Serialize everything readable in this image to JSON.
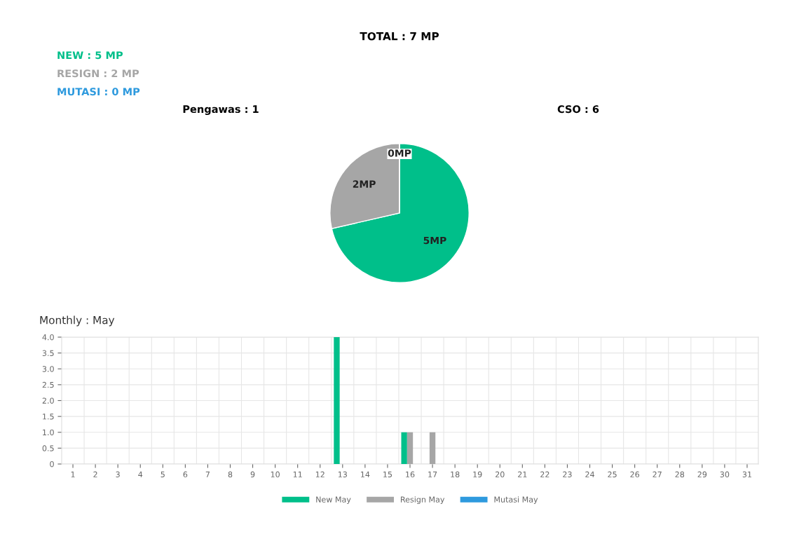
{
  "chart_data": [
    {
      "type": "pie",
      "title": "TOTAL : 7 MP",
      "categories": [
        null,
        null,
        null
      ],
      "values": [
        5,
        2,
        0
      ],
      "colors": [
        "#00bf8a",
        "#a6a6a6",
        "#2e9ade"
      ],
      "value_labels": [
        "5MP",
        "2MP",
        "0MP"
      ],
      "annotations": [
        "NEW : 5 MP",
        "RESIGN : 2 MP",
        "MUTASI : 0 MP",
        "Pengawas : 1",
        "CSO : 6"
      ]
    },
    {
      "type": "bar",
      "title": "Monthly : May",
      "categories": [
        "1",
        "2",
        "3",
        "4",
        "5",
        "6",
        "7",
        "8",
        "9",
        "10",
        "11",
        "12",
        "13",
        "14",
        "15",
        "16",
        "17",
        "18",
        "19",
        "20",
        "21",
        "22",
        "23",
        "24",
        "25",
        "26",
        "27",
        "28",
        "29",
        "30",
        "31"
      ],
      "series": [
        {
          "name": "New May",
          "color": "#00bf8a",
          "values": [
            0,
            0,
            0,
            0,
            0,
            0,
            0,
            0,
            0,
            0,
            0,
            0,
            4,
            0,
            0,
            1,
            0,
            0,
            0,
            0,
            0,
            0,
            0,
            0,
            0,
            0,
            0,
            0,
            0,
            0,
            0
          ]
        },
        {
          "name": "Resign May",
          "color": "#a6a6a6",
          "values": [
            0,
            0,
            0,
            0,
            0,
            0,
            0,
            0,
            0,
            0,
            0,
            0,
            0,
            0,
            0,
            1,
            1,
            0,
            0,
            0,
            0,
            0,
            0,
            0,
            0,
            0,
            0,
            0,
            0,
            0,
            0
          ]
        },
        {
          "name": "Mutasi May",
          "color": "#2e9ade",
          "values": [
            0,
            0,
            0,
            0,
            0,
            0,
            0,
            0,
            0,
            0,
            0,
            0,
            0,
            0,
            0,
            0,
            0,
            0,
            0,
            0,
            0,
            0,
            0,
            0,
            0,
            0,
            0,
            0,
            0,
            0,
            0
          ]
        }
      ],
      "ylim": [
        0,
        4
      ],
      "yticks": [
        0,
        {
          "value": 0.5,
          "label": "0.5"
        },
        {
          "value": 1,
          "label": "1.0"
        },
        {
          "value": 1.5,
          "label": "1.5"
        },
        {
          "value": 2,
          "label": "2.0"
        },
        {
          "value": 2.5,
          "label": "2.5"
        },
        {
          "value": 3,
          "label": "3.0"
        },
        {
          "value": 3.5,
          "label": "3.5"
        },
        {
          "value": 4,
          "label": "4.0"
        }
      ],
      "grid": true,
      "legend": "bottom"
    }
  ]
}
